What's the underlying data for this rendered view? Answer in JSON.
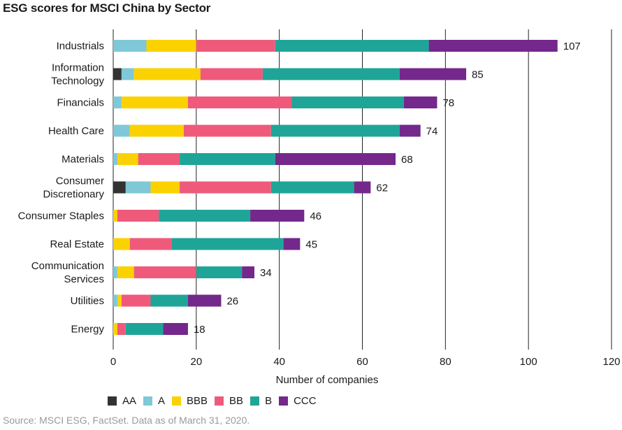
{
  "title": "ESG scores for MSCI China by Sector",
  "source": "Source: MSCI ESG, FactSet.  Data as of March 31, 2020.",
  "chart_data": {
    "type": "bar",
    "orientation": "horizontal",
    "stacked": true,
    "title": "ESG scores for MSCI China by Sector",
    "xlabel": "Number of companies",
    "ylabel": "",
    "xlim": [
      0,
      120
    ],
    "xticks": [
      0,
      20,
      40,
      60,
      80,
      100,
      120
    ],
    "grid": "vertical",
    "legend_position": "bottom",
    "categories": [
      [
        "Industrials"
      ],
      [
        "Information",
        "Technology"
      ],
      [
        "Financials"
      ],
      [
        "Health Care"
      ],
      [
        "Materials"
      ],
      [
        "Consumer",
        "Discretionary"
      ],
      [
        "Consumer Staples"
      ],
      [
        "Real Estate"
      ],
      [
        "Communication",
        "Services"
      ],
      [
        "Utilities"
      ],
      [
        "Energy"
      ]
    ],
    "totals": [
      107,
      85,
      78,
      74,
      68,
      62,
      46,
      45,
      34,
      26,
      18
    ],
    "series": [
      {
        "name": "AA",
        "color": "#333333",
        "values": [
          0,
          2,
          0,
          0,
          0,
          3,
          0,
          0,
          0,
          0,
          0
        ]
      },
      {
        "name": "A",
        "color": "#7ec8d8",
        "values": [
          8,
          3,
          2,
          4,
          1,
          6,
          0,
          0,
          1,
          1,
          0
        ]
      },
      {
        "name": "BBB",
        "color": "#fbd200",
        "values": [
          12,
          16,
          16,
          13,
          5,
          7,
          1,
          4,
          4,
          1,
          1
        ]
      },
      {
        "name": "BB",
        "color": "#ef5a7b",
        "values": [
          19,
          15,
          25,
          21,
          10,
          22,
          10,
          10,
          15,
          7,
          2
        ]
      },
      {
        "name": "B",
        "color": "#1fa598",
        "values": [
          37,
          33,
          27,
          31,
          23,
          20,
          22,
          27,
          11,
          9,
          9
        ]
      },
      {
        "name": "CCC",
        "color": "#74288b",
        "values": [
          31,
          16,
          8,
          5,
          29,
          4,
          13,
          4,
          3,
          8,
          6
        ]
      }
    ]
  }
}
